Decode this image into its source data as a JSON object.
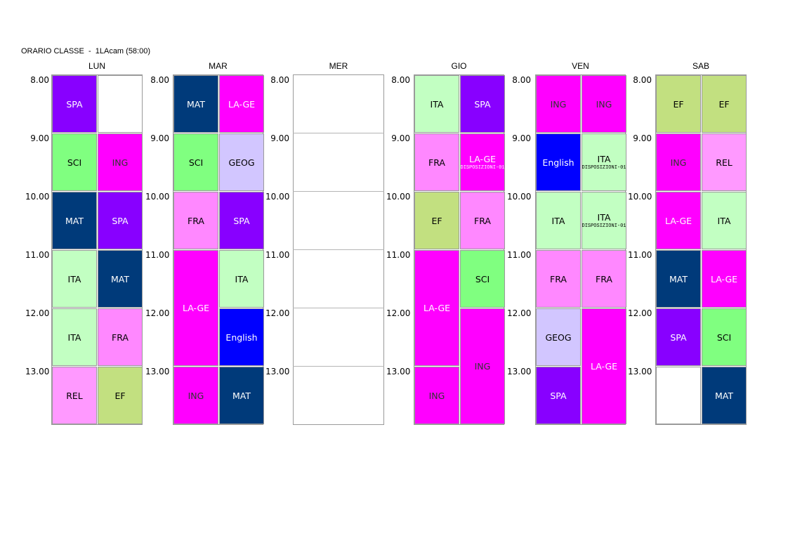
{
  "title": "ORARIO CLASSE  -  1LAcam (58:00)",
  "colors": {
    "SPA": "#8800ff",
    "SCI": "#80ff80",
    "ING": "#ff00ff",
    "MAT": "#003a7a",
    "ITA": "#c2ffc2",
    "FRA": "#ff88ff",
    "REL": "#ff99ff",
    "EF": "#c2e080",
    "LA-GE": "#ff00ff",
    "GEOG": "#d2c6ff",
    "English": "#0000ff",
    "empty": "#ffffff"
  },
  "text_colors": {
    "SPA": "#ffffff",
    "SCI": "#000000",
    "ING": "#333333",
    "MAT": "#ffffff",
    "ITA": "#000000",
    "FRA": "#000000",
    "REL": "#000000",
    "EF": "#000000",
    "LA-GE": "#ffffff",
    "GEOG": "#000000",
    "English": "#ffffff"
  },
  "times": [
    "8.00",
    "9.00",
    "10.00",
    "11.00",
    "12.00",
    "13.00"
  ],
  "days": [
    {
      "name": "LUN",
      "cells": [
        {
          "col": 0,
          "start": 0,
          "span": 1,
          "subject": "SPA"
        },
        {
          "col": 1,
          "start": 0,
          "span": 1,
          "subject": ""
        },
        {
          "col": 0,
          "start": 1,
          "span": 1,
          "subject": "SCI"
        },
        {
          "col": 1,
          "start": 1,
          "span": 1,
          "subject": "ING"
        },
        {
          "col": 0,
          "start": 2,
          "span": 1,
          "subject": "MAT"
        },
        {
          "col": 1,
          "start": 2,
          "span": 1,
          "subject": "SPA"
        },
        {
          "col": 0,
          "start": 3,
          "span": 1,
          "subject": "ITA"
        },
        {
          "col": 1,
          "start": 3,
          "span": 1,
          "subject": "MAT"
        },
        {
          "col": 0,
          "start": 4,
          "span": 1,
          "subject": "ITA"
        },
        {
          "col": 1,
          "start": 4,
          "span": 1,
          "subject": "FRA"
        },
        {
          "col": 0,
          "start": 5,
          "span": 1,
          "subject": "REL"
        },
        {
          "col": 1,
          "start": 5,
          "span": 1,
          "subject": "EF"
        }
      ]
    },
    {
      "name": "MAR",
      "cells": [
        {
          "col": 0,
          "start": 0,
          "span": 1,
          "subject": "MAT"
        },
        {
          "col": 1,
          "start": 0,
          "span": 1,
          "subject": "LA-GE"
        },
        {
          "col": 0,
          "start": 1,
          "span": 1,
          "subject": "SCI"
        },
        {
          "col": 1,
          "start": 1,
          "span": 1,
          "subject": "GEOG"
        },
        {
          "col": 0,
          "start": 2,
          "span": 1,
          "subject": "FRA"
        },
        {
          "col": 1,
          "start": 2,
          "span": 1,
          "subject": "SPA"
        },
        {
          "col": 0,
          "start": 3,
          "span": 2,
          "subject": "LA-GE"
        },
        {
          "col": 1,
          "start": 3,
          "span": 1,
          "subject": "ITA"
        },
        {
          "col": 1,
          "start": 4,
          "span": 1,
          "subject": "English"
        },
        {
          "col": 0,
          "start": 5,
          "span": 1,
          "subject": "ING"
        },
        {
          "col": 1,
          "start": 5,
          "span": 1,
          "subject": "MAT"
        }
      ]
    },
    {
      "name": "MER",
      "cells": []
    },
    {
      "name": "GIO",
      "cells": [
        {
          "col": 0,
          "start": 0,
          "span": 1,
          "subject": "ITA"
        },
        {
          "col": 1,
          "start": 0,
          "span": 1,
          "subject": "SPA"
        },
        {
          "col": 0,
          "start": 1,
          "span": 1,
          "subject": "FRA"
        },
        {
          "col": 1,
          "start": 1,
          "span": 1,
          "subject": "LA-GE",
          "note": "DISPOSIZIONI-01"
        },
        {
          "col": 0,
          "start": 2,
          "span": 1,
          "subject": "EF"
        },
        {
          "col": 1,
          "start": 2,
          "span": 1,
          "subject": "FRA"
        },
        {
          "col": 0,
          "start": 3,
          "span": 2,
          "subject": "LA-GE"
        },
        {
          "col": 1,
          "start": 3,
          "span": 1,
          "subject": "SCI"
        },
        {
          "col": 1,
          "start": 4,
          "span": 2,
          "subject": "ING"
        },
        {
          "col": 0,
          "start": 5,
          "span": 1,
          "subject": "ING"
        }
      ]
    },
    {
      "name": "VEN",
      "cells": [
        {
          "col": 0,
          "start": 0,
          "span": 1,
          "subject": "ING"
        },
        {
          "col": 1,
          "start": 0,
          "span": 1,
          "subject": "ING"
        },
        {
          "col": 0,
          "start": 1,
          "span": 1,
          "subject": "English"
        },
        {
          "col": 1,
          "start": 1,
          "span": 1,
          "subject": "ITA",
          "note": "DISPOSIZIONI-01"
        },
        {
          "col": 0,
          "start": 2,
          "span": 1,
          "subject": "ITA"
        },
        {
          "col": 1,
          "start": 2,
          "span": 1,
          "subject": "ITA",
          "note": "DISPOSIZIONI-01"
        },
        {
          "col": 0,
          "start": 3,
          "span": 1,
          "subject": "FRA"
        },
        {
          "col": 1,
          "start": 3,
          "span": 1,
          "subject": "FRA"
        },
        {
          "col": 0,
          "start": 4,
          "span": 1,
          "subject": "GEOG"
        },
        {
          "col": 1,
          "start": 4,
          "span": 2,
          "subject": "LA-GE"
        },
        {
          "col": 0,
          "start": 5,
          "span": 1,
          "subject": "SPA"
        }
      ]
    },
    {
      "name": "SAB",
      "cells": [
        {
          "col": 0,
          "start": 0,
          "span": 1,
          "subject": "EF"
        },
        {
          "col": 1,
          "start": 0,
          "span": 1,
          "subject": "EF"
        },
        {
          "col": 0,
          "start": 1,
          "span": 1,
          "subject": "ING"
        },
        {
          "col": 1,
          "start": 1,
          "span": 1,
          "subject": "REL"
        },
        {
          "col": 0,
          "start": 2,
          "span": 1,
          "subject": "LA-GE"
        },
        {
          "col": 1,
          "start": 2,
          "span": 1,
          "subject": "ITA"
        },
        {
          "col": 0,
          "start": 3,
          "span": 1,
          "subject": "MAT"
        },
        {
          "col": 1,
          "start": 3,
          "span": 1,
          "subject": "LA-GE"
        },
        {
          "col": 0,
          "start": 4,
          "span": 1,
          "subject": "SPA"
        },
        {
          "col": 1,
          "start": 4,
          "span": 1,
          "subject": "SCI"
        },
        {
          "col": 0,
          "start": 5,
          "span": 1,
          "subject": ""
        },
        {
          "col": 1,
          "start": 5,
          "span": 1,
          "subject": "MAT"
        }
      ]
    }
  ]
}
